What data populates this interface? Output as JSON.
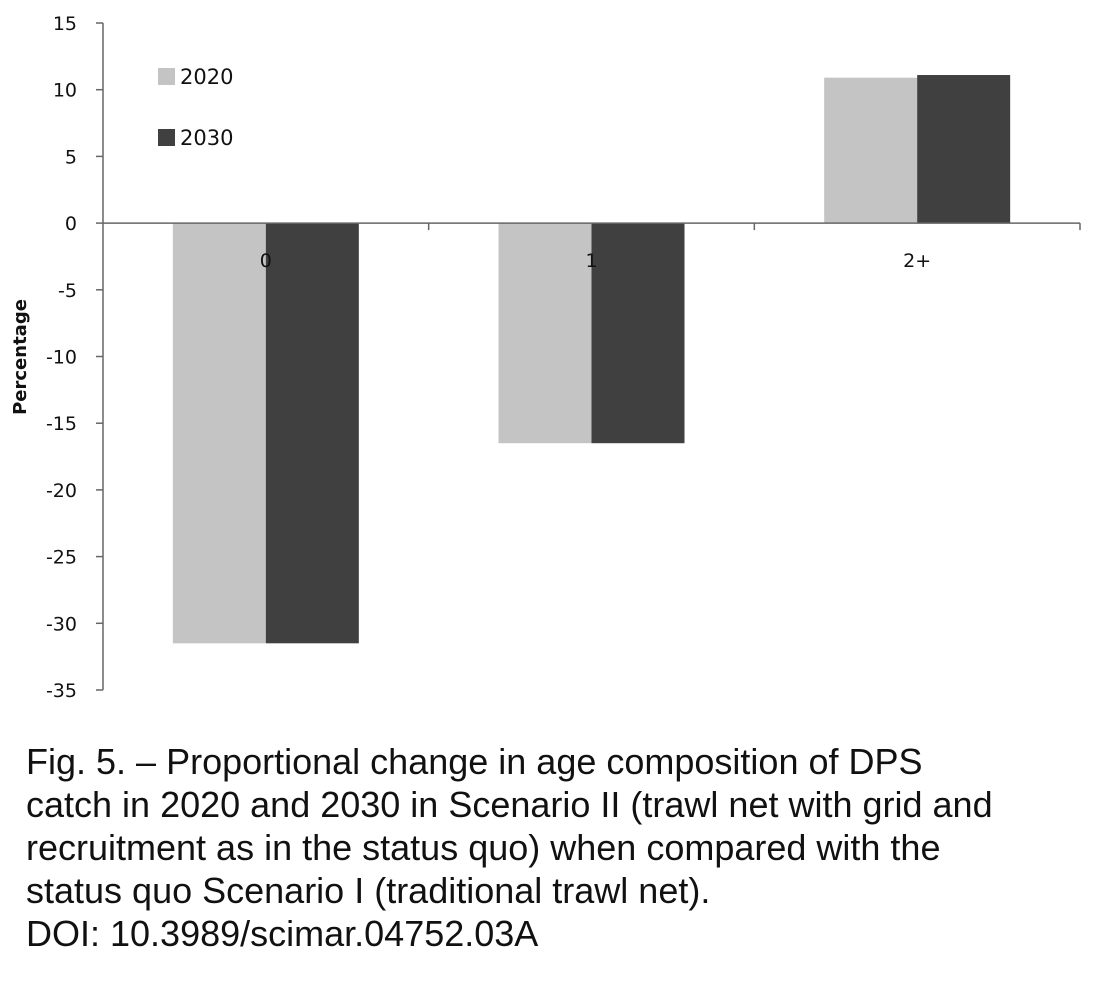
{
  "chart_data": {
    "type": "bar",
    "categories": [
      "0",
      "1",
      "2+"
    ],
    "series": [
      {
        "name": "2020",
        "values": [
          -31.5,
          -16.5,
          10.9
        ],
        "color": "#c4c4c4"
      },
      {
        "name": "2030",
        "values": [
          -31.5,
          -16.5,
          11.1
        ],
        "color": "#404040"
      }
    ],
    "ylabel": "Percentage",
    "ylim": [
      -35,
      15
    ],
    "yticks": [
      "15",
      "10",
      "5",
      "0",
      "-5",
      "-10",
      "-15",
      "-20",
      "-25",
      "-30",
      "-35"
    ],
    "legend_position": "top-left",
    "grid": false
  },
  "caption": {
    "lines": [
      "Fig. 5. – Proportional change in age composition of DPS",
      "catch in 2020 and 2030 in Scenario II (trawl net with grid and",
      "recruitment as in the status quo) when compared with the",
      "status quo Scenario I (traditional trawl net).",
      "DOI: 10.3989/scimar.04752.03A"
    ]
  }
}
